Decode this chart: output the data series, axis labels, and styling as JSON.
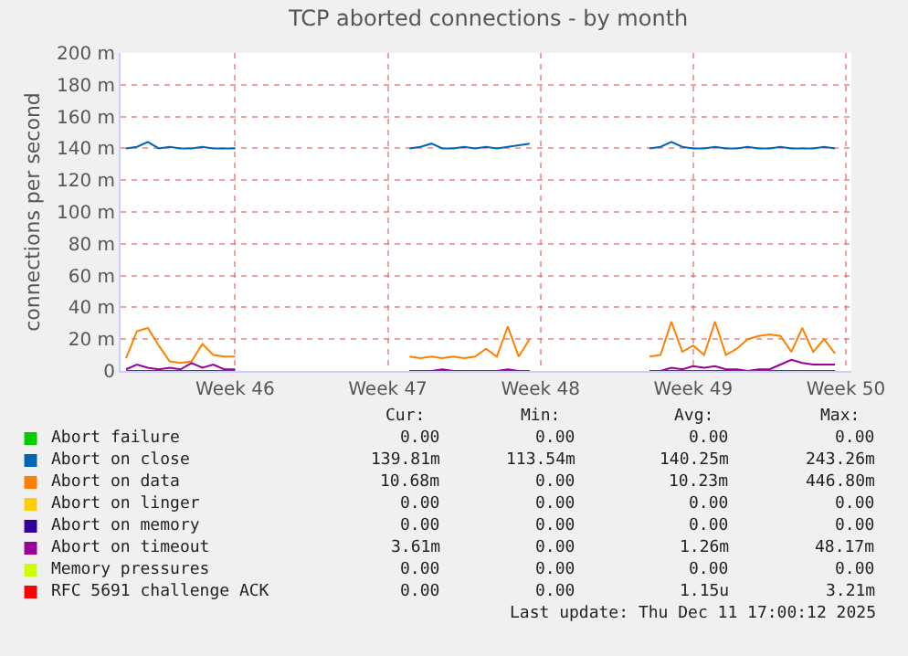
{
  "chart_data": {
    "type": "line",
    "title": "TCP aborted connections - by month",
    "ylabel": "connections per second",
    "categories": [
      null,
      null,
      null,
      null,
      null,
      null,
      null,
      null,
      null,
      null,
      "Week 46",
      null,
      null,
      null,
      null,
      null,
      null,
      null,
      null,
      null,
      null,
      null,
      null,
      null,
      "Week 47",
      null,
      null,
      null,
      null,
      null,
      null,
      null,
      null,
      null,
      null,
      null,
      null,
      null,
      "Week 48",
      null,
      null,
      null,
      null,
      null,
      null,
      null,
      null,
      null,
      null,
      null,
      null,
      null,
      "Week 49",
      null,
      null,
      null,
      null,
      null,
      null,
      null,
      null,
      null,
      null,
      null,
      null,
      null,
      "Week 50"
    ],
    "ylim": [
      0,
      200
    ],
    "yticks": [
      {
        "value": 0,
        "label": "0"
      },
      {
        "value": 20,
        "label": "20 m"
      },
      {
        "value": 40,
        "label": "40 m"
      },
      {
        "value": 60,
        "label": "60 m"
      },
      {
        "value": 80,
        "label": "80 m"
      },
      {
        "value": 100,
        "label": "100 m"
      },
      {
        "value": 120,
        "label": "120 m"
      },
      {
        "value": 140,
        "label": "140 m"
      },
      {
        "value": 160,
        "label": "160 m"
      },
      {
        "value": 180,
        "label": "180 m"
      },
      {
        "value": 200,
        "label": "200 m"
      }
    ],
    "grid": true,
    "legend": "bottom",
    "marker": "none",
    "line_style": "solid",
    "series": [
      {
        "name": "Abort failure",
        "color": "#00cc00",
        "values": [
          null,
          null,
          null,
          null,
          null,
          null,
          null,
          null,
          null,
          null,
          null,
          null,
          null,
          null,
          null,
          null,
          null,
          null,
          null,
          null,
          null,
          null,
          null,
          null,
          null,
          null,
          null,
          null,
          null,
          null,
          null,
          null,
          null,
          null,
          null,
          null,
          null,
          null,
          null,
          null,
          null,
          null,
          null,
          null,
          null,
          null,
          null,
          null,
          null,
          null,
          null,
          null,
          null,
          null,
          null,
          null,
          null,
          null,
          null,
          null,
          null,
          null,
          null,
          null,
          null,
          null,
          null
        ]
      },
      {
        "name": "Abort on close",
        "color": "#0066b3",
        "values": [
          140,
          141,
          144,
          140,
          141,
          140,
          140,
          141,
          140,
          140,
          140,
          null,
          null,
          null,
          null,
          null,
          null,
          null,
          null,
          null,
          null,
          null,
          null,
          null,
          null,
          null,
          140,
          141,
          143,
          140,
          140,
          141,
          140,
          141,
          140,
          141,
          142,
          143,
          null,
          null,
          null,
          null,
          null,
          null,
          null,
          null,
          null,
          null,
          140,
          141,
          144,
          141,
          140,
          140,
          141,
          140,
          140,
          141,
          140,
          140,
          141,
          140,
          140,
          140,
          141,
          140,
          null
        ]
      },
      {
        "name": "Abort on data",
        "color": "#ff8000",
        "values": [
          8,
          25,
          27,
          16,
          6,
          5,
          6,
          17,
          10,
          9,
          9,
          null,
          null,
          null,
          null,
          null,
          null,
          null,
          null,
          null,
          null,
          null,
          null,
          null,
          null,
          null,
          9,
          8,
          9,
          8,
          9,
          8,
          9,
          14,
          9,
          28,
          9,
          20,
          null,
          null,
          null,
          null,
          null,
          null,
          null,
          null,
          null,
          null,
          9,
          10,
          31,
          12,
          16,
          10,
          31,
          10,
          14,
          20,
          22,
          23,
          22,
          12,
          27,
          12,
          20,
          11,
          null
        ]
      },
      {
        "name": "Abort on linger",
        "color": "#ffcc00",
        "values": [
          null,
          null,
          null,
          null,
          null,
          null,
          null,
          null,
          null,
          null,
          null,
          null,
          null,
          null,
          null,
          null,
          null,
          null,
          null,
          null,
          null,
          null,
          null,
          null,
          null,
          null,
          null,
          null,
          null,
          null,
          null,
          null,
          null,
          null,
          null,
          null,
          null,
          null,
          null,
          null,
          null,
          null,
          null,
          null,
          null,
          null,
          null,
          null,
          null,
          null,
          null,
          null,
          null,
          null,
          null,
          null,
          null,
          null,
          null,
          null,
          null,
          null,
          null,
          null,
          null,
          null,
          null
        ]
      },
      {
        "name": "Abort on memory",
        "color": "#330099",
        "values": [
          null,
          null,
          null,
          null,
          null,
          null,
          null,
          null,
          null,
          null,
          null,
          null,
          null,
          null,
          null,
          null,
          null,
          null,
          null,
          null,
          null,
          null,
          null,
          null,
          null,
          null,
          null,
          null,
          null,
          null,
          null,
          null,
          null,
          null,
          null,
          null,
          null,
          null,
          null,
          null,
          null,
          null,
          null,
          null,
          null,
          null,
          null,
          null,
          null,
          null,
          null,
          null,
          null,
          null,
          null,
          null,
          null,
          null,
          null,
          null,
          null,
          null,
          null,
          null,
          null,
          null,
          null
        ]
      },
      {
        "name": "Abort on timeout",
        "color": "#990099",
        "values": [
          1,
          4,
          2,
          1,
          2,
          1,
          5,
          2,
          4,
          1,
          1,
          null,
          null,
          null,
          null,
          null,
          null,
          null,
          null,
          null,
          null,
          null,
          null,
          null,
          null,
          null,
          0,
          0,
          0,
          1,
          0,
          0,
          0,
          0,
          0,
          1,
          0,
          0,
          null,
          null,
          null,
          null,
          null,
          null,
          null,
          null,
          null,
          null,
          0,
          0,
          2,
          1,
          3,
          2,
          3,
          1,
          1,
          0,
          1,
          1,
          4,
          7,
          5,
          4,
          4,
          4,
          null
        ]
      },
      {
        "name": "Memory pressures",
        "color": "#ccff00",
        "values": [
          null,
          null,
          null,
          null,
          null,
          null,
          null,
          null,
          null,
          null,
          null,
          null,
          null,
          null,
          null,
          null,
          null,
          null,
          null,
          null,
          null,
          null,
          null,
          null,
          null,
          null,
          null,
          null,
          null,
          null,
          null,
          null,
          null,
          null,
          null,
          null,
          null,
          null,
          null,
          null,
          null,
          null,
          null,
          null,
          null,
          null,
          null,
          null,
          null,
          null,
          null,
          null,
          null,
          null,
          null,
          null,
          null,
          null,
          null,
          null,
          null,
          null,
          null,
          null,
          null,
          null,
          null
        ]
      },
      {
        "name": "RFC 5691 challenge ACK",
        "color": "#ff0000",
        "values": [
          0,
          0,
          0,
          0,
          0,
          0,
          0,
          0,
          0,
          0,
          0,
          null,
          null,
          null,
          null,
          null,
          null,
          null,
          null,
          null,
          null,
          null,
          null,
          null,
          null,
          null,
          0,
          0,
          0,
          0,
          0,
          0,
          0,
          0,
          0,
          0,
          0,
          0,
          null,
          null,
          null,
          null,
          null,
          null,
          null,
          null,
          null,
          null,
          0,
          0,
          0,
          0,
          0,
          0,
          0,
          0,
          0,
          0,
          0,
          0,
          0,
          0,
          0,
          0,
          0,
          0,
          null
        ]
      }
    ],
    "annotations": [
      "Cur:",
      "Min:",
      "Avg:",
      "Max:",
      "0.00",
      "0.00",
      "0.00",
      "0.00",
      "139.81m",
      "113.54m",
      "140.25m",
      "243.26m",
      "10.68m",
      "0.00",
      "10.23m",
      "446.80m",
      "0.00",
      "0.00",
      "0.00",
      "0.00",
      "0.00",
      "0.00",
      "0.00",
      "0.00",
      "3.61m",
      "0.00",
      "1.26m",
      "48.17m",
      "0.00",
      "0.00",
      "0.00",
      "0.00",
      "0.00",
      "0.00",
      "1.15u",
      "3.21m",
      "Last update: Thu Dec 11 17:00:12 2025"
    ]
  }
}
